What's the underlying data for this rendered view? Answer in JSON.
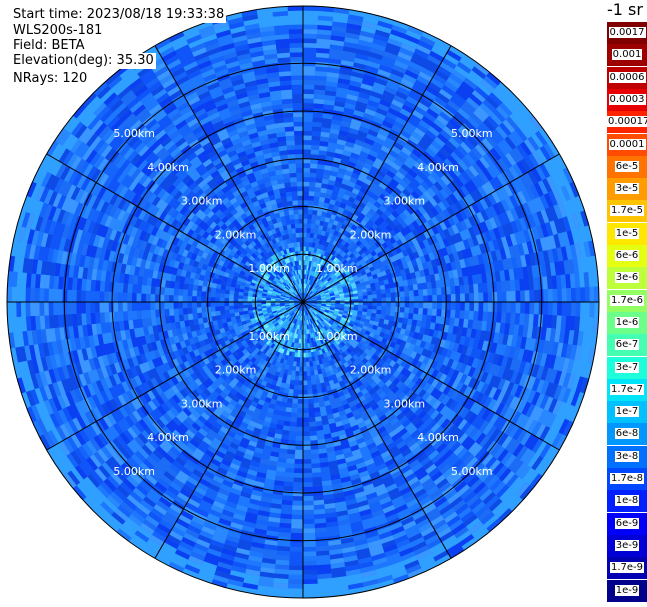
{
  "header": {
    "start_time": "Start time: 2023/08/18 19:33:38",
    "instrument": "WLS200s-181",
    "field": "Field: BETA",
    "elevation": "Elevation(deg): 35.30",
    "nrays": "NRays: 120"
  },
  "colorbar": {
    "title": "-1 sr",
    "labels": [
      "0.0017",
      "0.001",
      "0.0006",
      "0.0003",
      "0.00017",
      "0.0001",
      "6e-5",
      "3e-5",
      "1.7e-5",
      "1e-5",
      "6e-6",
      "3e-6",
      "1.7e-6",
      "1e-6",
      "6e-7",
      "3e-7",
      "1.7e-7",
      "1e-7",
      "6e-8",
      "3e-8",
      "1.7e-8",
      "1e-8",
      "6e-9",
      "3e-9",
      "1.7e-9",
      "1e-9"
    ],
    "colors": [
      "#800000",
      "#9c0000",
      "#c00000",
      "#e80000",
      "#ff2400",
      "#ff4c00",
      "#ff7400",
      "#ff9c00",
      "#ffc400",
      "#ffe800",
      "#e4ff12",
      "#bcff3a",
      "#94ff62",
      "#6cff8a",
      "#44ffb2",
      "#1cffda",
      "#00e4f8",
      "#00c0ff",
      "#0098ff",
      "#0070ff",
      "#0048ff",
      "#0020ff",
      "#0000fa",
      "#0000d6",
      "#0000b2",
      "#00008a"
    ]
  },
  "chart_data": {
    "type": "heatmap",
    "projection": "polar (PPI scan)",
    "field": "BETA",
    "elevation_deg": 35.3,
    "n_rays": 120,
    "range_rings_km": [
      1,
      2,
      3,
      4,
      5
    ],
    "range_labels": [
      "1.00km",
      "2.00km",
      "3.00km",
      "4.00km",
      "5.00km"
    ],
    "max_range_km": 6.2,
    "spokes_deg": [
      0,
      30,
      60,
      90,
      120,
      150,
      180,
      210,
      240,
      270,
      300,
      330
    ],
    "dominant_level": "3e-8",
    "near_range_level": "1e-7",
    "outer_ring_level": "6e-8"
  }
}
